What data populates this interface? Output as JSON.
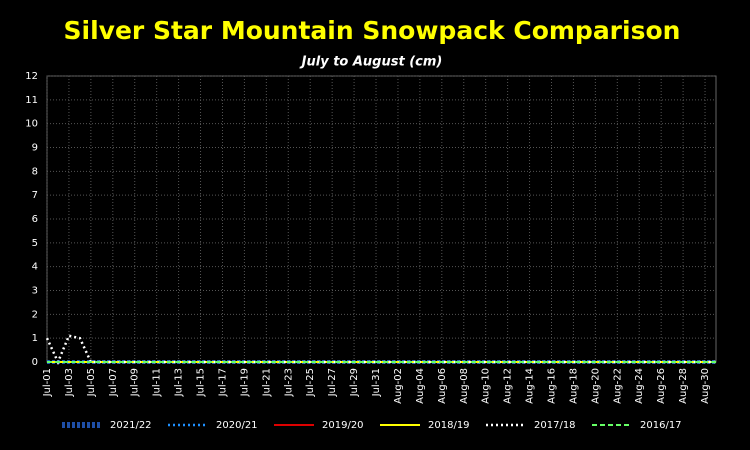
{
  "chart_data": {
    "type": "line",
    "title": "Silver Star Mountain Snowpack Comparison",
    "subtitle": "July to August   (cm)",
    "categories": [
      "Jul-01",
      null,
      "Jul-03",
      null,
      "Jul-05",
      null,
      "Jul-07",
      null,
      "Jul-09",
      null,
      "Jul-11",
      null,
      "Jul-13",
      null,
      "Jul-15",
      null,
      "Jul-17",
      null,
      "Jul-19",
      null,
      "Jul-21",
      null,
      "Jul-23",
      null,
      "Jul-25",
      null,
      "Jul-27",
      null,
      "Jul-29",
      null,
      "Jul-31",
      null,
      "Aug-02",
      null,
      "Aug-04",
      null,
      "Aug-06",
      null,
      "Aug-08",
      null,
      "Aug-10",
      null,
      "Aug-12",
      null,
      "Aug-14",
      null,
      "Aug-16",
      null,
      "Aug-18",
      null,
      "Aug-20",
      null,
      "Aug-22",
      null,
      "Aug-24",
      null,
      "Aug-26",
      null,
      "Aug-28",
      null,
      "Aug-30",
      null
    ],
    "ylim": [
      0,
      12
    ],
    "yticks": [
      0,
      1,
      2,
      3,
      4,
      5,
      6,
      7,
      8,
      9,
      10,
      11,
      12
    ],
    "grid": true,
    "series": [
      {
        "name": "2021/22",
        "color": "#1f4fa8",
        "dash": "dotted-thick",
        "values": [
          0,
          0,
          0,
          0,
          0,
          0,
          0,
          0,
          0,
          0,
          0,
          0,
          0,
          0,
          0,
          0,
          0,
          0,
          0,
          0,
          0,
          0,
          0,
          0,
          0,
          0,
          0,
          0,
          0,
          0,
          0,
          0,
          0,
          0,
          0,
          0,
          0,
          0,
          0,
          0,
          0,
          0,
          0,
          0,
          0,
          0,
          0,
          0,
          0,
          0,
          0,
          0,
          0,
          0,
          0,
          0,
          0,
          0,
          0,
          0,
          0,
          0
        ]
      },
      {
        "name": "2020/21",
        "color": "#1e90ff",
        "dash": "dotted",
        "values": [
          0,
          0,
          0,
          0,
          0,
          0,
          0,
          0,
          0,
          0,
          0,
          0,
          0,
          0,
          0,
          0,
          0,
          0,
          0,
          0,
          0,
          0,
          0,
          0,
          0,
          0,
          0,
          0,
          0,
          0,
          0,
          0,
          0,
          0,
          0,
          0,
          0,
          0,
          0,
          0,
          0,
          0,
          0,
          0,
          0,
          0,
          0,
          0,
          0,
          0,
          0,
          0,
          0,
          0,
          0,
          0,
          0,
          0,
          0,
          0,
          0,
          0
        ]
      },
      {
        "name": "2019/20",
        "color": "#dd0000",
        "dash": "solid",
        "values": [
          0,
          0,
          0,
          0,
          0,
          0,
          0,
          0,
          0,
          0,
          0,
          0,
          0,
          0,
          0,
          0,
          0,
          0,
          0,
          0,
          0,
          0,
          0,
          0,
          0,
          0,
          0,
          0,
          0,
          0,
          0,
          0,
          0,
          0,
          0,
          0,
          0,
          0,
          0,
          0,
          0,
          0,
          0,
          0,
          0,
          0,
          0,
          0,
          0,
          0,
          0,
          0,
          0,
          0,
          0,
          0,
          0,
          0,
          0,
          0,
          0,
          0
        ]
      },
      {
        "name": "2018/19",
        "color": "#ffff00",
        "dash": "solid",
        "values": [
          0,
          0,
          0,
          0,
          0,
          0,
          0,
          0,
          0,
          0,
          0,
          0,
          0,
          0,
          0,
          0,
          0,
          0,
          0,
          0,
          0,
          0,
          0,
          0,
          0,
          0,
          0,
          0,
          0,
          0,
          0,
          0,
          0,
          0,
          0,
          0,
          0,
          0,
          0,
          0,
          0,
          0,
          0,
          0,
          0,
          0,
          0,
          0,
          0,
          0,
          0,
          0,
          0,
          0,
          0,
          0,
          0,
          0,
          0,
          0,
          0,
          0
        ]
      },
      {
        "name": "2017/18",
        "color": "#ffffff",
        "dash": "dotted",
        "values": [
          1,
          0,
          1.1,
          1,
          0,
          0,
          0,
          0,
          0,
          0,
          0,
          0,
          0,
          0,
          0,
          0,
          0,
          0,
          0,
          0,
          0,
          0,
          0,
          0,
          0,
          0,
          0,
          0,
          0,
          0,
          0,
          0,
          0,
          0,
          0,
          0,
          0,
          0,
          0,
          0,
          0,
          0,
          0,
          0,
          0,
          0,
          0,
          0,
          0,
          0,
          0,
          0,
          0,
          0,
          0,
          0,
          0,
          0,
          0,
          0,
          0,
          0
        ]
      },
      {
        "name": "2016/17",
        "color": "#66ff66",
        "dash": "dashed",
        "values": [
          0,
          0,
          0,
          0,
          0,
          0,
          0,
          0,
          0,
          0,
          0,
          0,
          0,
          0,
          0,
          0,
          0,
          0,
          0,
          0,
          0,
          0,
          0,
          0,
          0,
          0,
          0,
          0,
          0,
          0,
          0,
          0,
          0,
          0,
          0,
          0,
          0,
          0,
          0,
          0,
          0,
          0,
          0,
          0,
          0,
          0,
          0,
          0,
          0,
          0,
          0,
          0,
          0,
          0,
          0,
          0,
          0,
          0,
          0,
          0,
          0,
          0
        ]
      }
    ]
  }
}
